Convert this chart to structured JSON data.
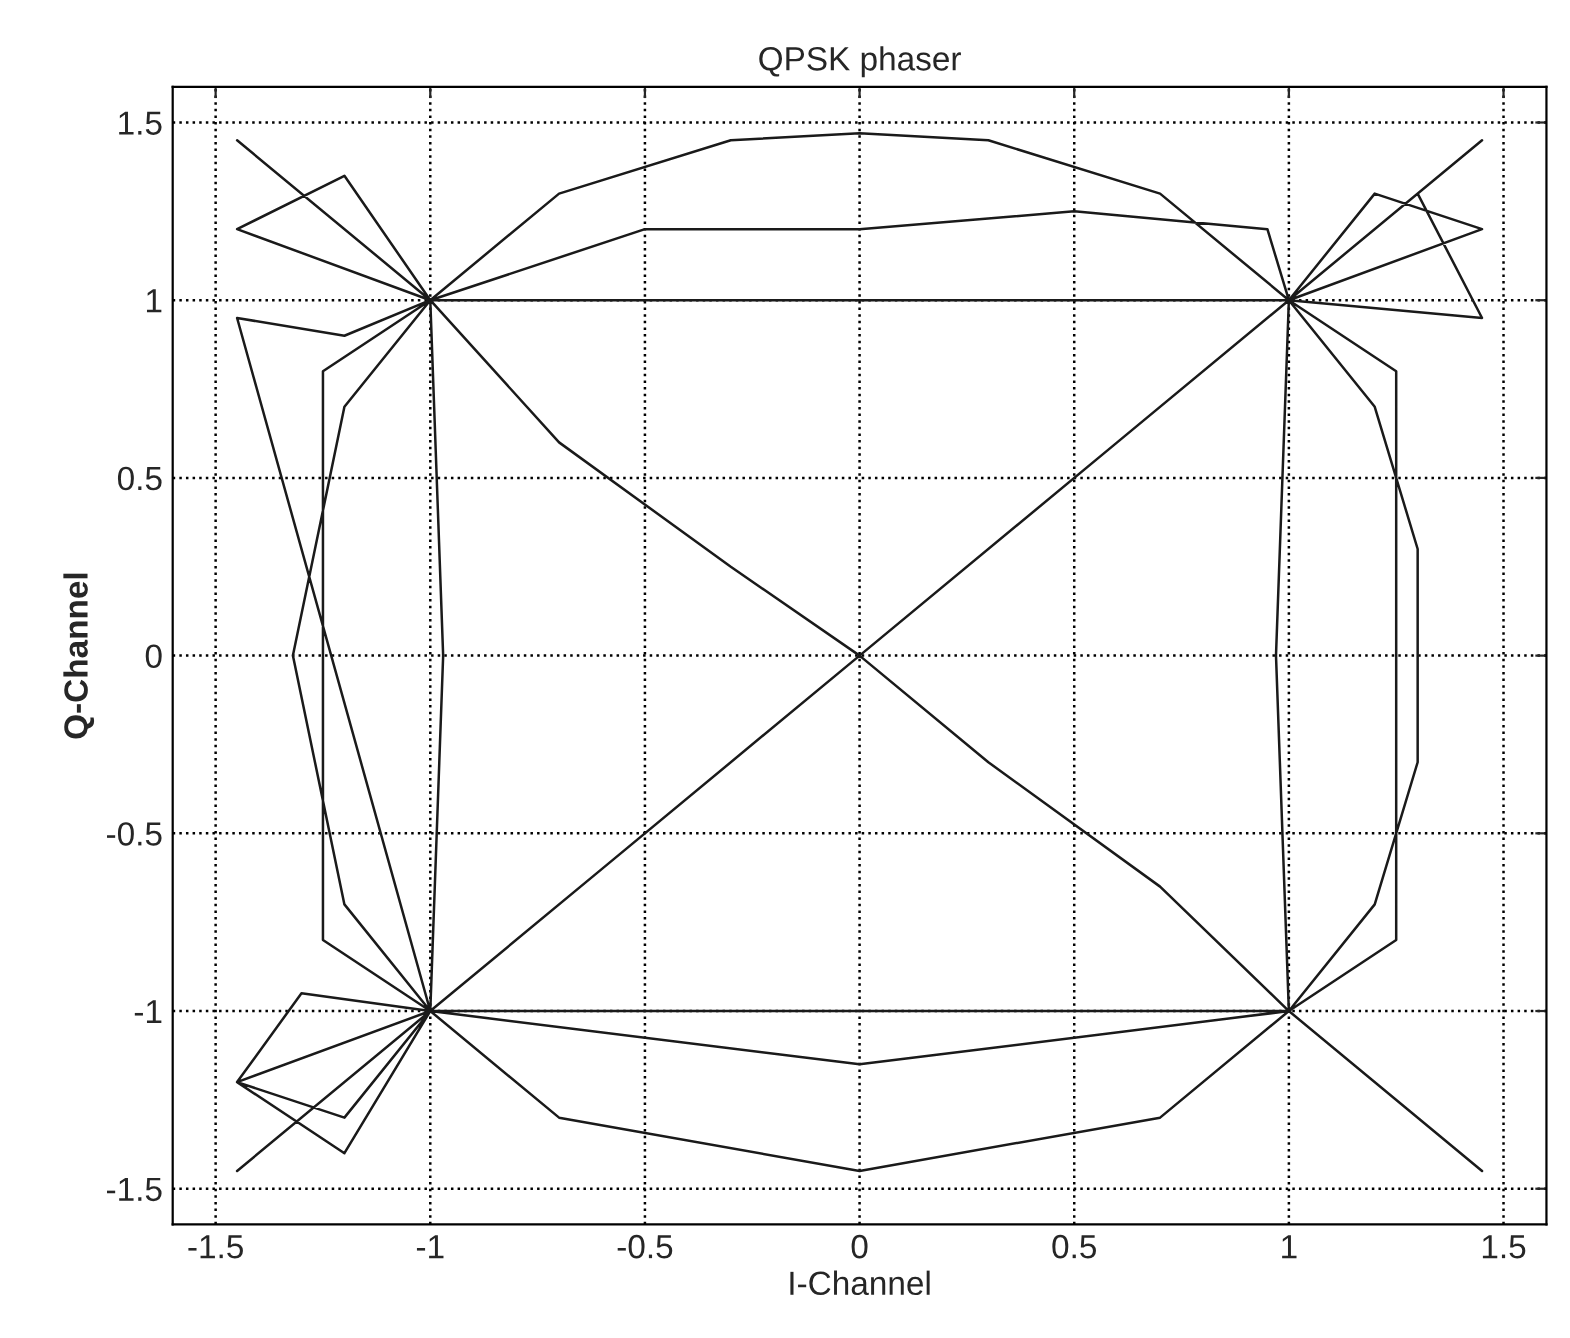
{
  "chart_data": {
    "type": "line",
    "title": "QPSK phaser",
    "xlabel": "I-Channel",
    "ylabel": "Q-Channel",
    "xlim": [
      -1.6,
      1.6
    ],
    "ylim": [
      -1.6,
      1.6
    ],
    "xticks": [
      -1.5,
      -1,
      -0.5,
      0,
      0.5,
      1,
      1.5
    ],
    "yticks": [
      -1.5,
      -1,
      -0.5,
      0,
      0.5,
      1,
      1.5
    ],
    "grid": true,
    "marker": "none",
    "line_style": "solid",
    "series": [
      {
        "color": "#1a1a1a",
        "x": [
          1,
          0.7,
          0.3,
          0,
          -0.3,
          -0.7,
          -1,
          -0.7,
          -0.3,
          0,
          0.3,
          0.7,
          1,
          1.2,
          1.3,
          1.3,
          1.2,
          1,
          0.6,
          0,
          -0.6,
          -1,
          -0.7,
          0,
          0.7,
          1,
          0,
          -1,
          -1.2,
          -1.32,
          -1.2,
          -1,
          0,
          1,
          1.45,
          1,
          1.45,
          1.2,
          1,
          0.97,
          1,
          -1,
          -1.45,
          -1,
          -1.45,
          -1.2,
          -1,
          -0.97,
          -1,
          -1.45,
          -1,
          -1.25,
          -1.25,
          -1,
          1,
          1.45,
          1,
          1.25,
          1.25,
          1,
          -1,
          -1.45,
          -1.2,
          -1,
          1,
          1.45,
          1.3,
          1.45,
          1,
          0.95,
          0.5,
          0,
          -0.5,
          -1,
          -1.2,
          -1.45,
          -1,
          -1.3,
          -1.45,
          -1.2,
          -1,
          0,
          1
        ],
        "values": [
          1,
          1.3,
          1.45,
          1.47,
          1.45,
          1.3,
          1,
          0.6,
          0.25,
          0,
          -0.3,
          -0.65,
          -1,
          -0.7,
          -0.3,
          0.3,
          0.7,
          1,
          0.6,
          0,
          -0.6,
          -1,
          -1.3,
          -1.45,
          -1.3,
          -1,
          -1,
          -1,
          -0.7,
          0,
          0.7,
          1,
          1,
          1,
          1.45,
          1,
          1.2,
          1.3,
          1,
          0,
          -1,
          -1,
          -1.45,
          -1,
          -1.2,
          -1.3,
          -1,
          0,
          1,
          1.45,
          1,
          0.8,
          -0.8,
          -1,
          -1,
          -1.45,
          -1,
          -0.8,
          0.8,
          1,
          1,
          1.2,
          1.35,
          1,
          1,
          0.95,
          1.3,
          1.45,
          1,
          1.2,
          1.25,
          1.2,
          1.2,
          1,
          0.9,
          0.95,
          -1,
          -0.95,
          -1.2,
          -1.4,
          -1,
          -1.15,
          -1
        ]
      }
    ]
  }
}
